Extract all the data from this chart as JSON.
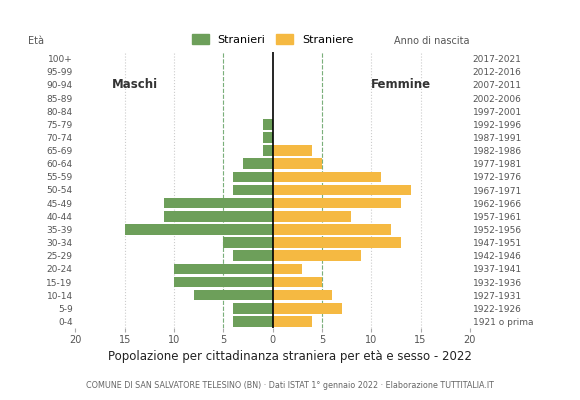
{
  "age_groups": [
    "100+",
    "95-99",
    "90-94",
    "85-89",
    "80-84",
    "75-79",
    "70-74",
    "65-69",
    "60-64",
    "55-59",
    "50-54",
    "45-49",
    "40-44",
    "35-39",
    "30-34",
    "25-29",
    "20-24",
    "15-19",
    "10-14",
    "5-9",
    "0-4"
  ],
  "birth_years": [
    "1921 o prima",
    "1922-1926",
    "1927-1931",
    "1932-1936",
    "1937-1941",
    "1942-1946",
    "1947-1951",
    "1952-1956",
    "1957-1961",
    "1962-1966",
    "1967-1971",
    "1972-1976",
    "1977-1981",
    "1982-1986",
    "1987-1991",
    "1992-1996",
    "1997-2001",
    "2002-2006",
    "2007-2011",
    "2012-2016",
    "2017-2021"
  ],
  "males": [
    0,
    0,
    0,
    0,
    0,
    1,
    1,
    1,
    3,
    4,
    4,
    11,
    11,
    15,
    5,
    4,
    10,
    10,
    8,
    4,
    4
  ],
  "females": [
    0,
    0,
    0,
    0,
    0,
    0,
    0,
    4,
    5,
    11,
    14,
    13,
    8,
    12,
    13,
    9,
    3,
    5,
    6,
    7,
    4
  ],
  "male_color": "#6d9f5a",
  "female_color": "#f5b942",
  "background_color": "#ffffff",
  "grid_color": "#cccccc",
  "dashed_line_color": "#7ab07a",
  "title": "Popolazione per cittadinanza straniera per età e sesso - 2022",
  "subtitle": "COMUNE DI SAN SALVATORE TELESINO (BN) · Dati ISTAT 1° gennaio 2022 · Elaborazione TUTTITALIA.IT",
  "legend_male": "Stranieri",
  "legend_female": "Straniere",
  "label_eta": "Età",
  "label_anno": "Anno di nascita",
  "label_maschi": "Maschi",
  "label_femmine": "Femmine",
  "xlim": 20,
  "bar_height": 0.8
}
